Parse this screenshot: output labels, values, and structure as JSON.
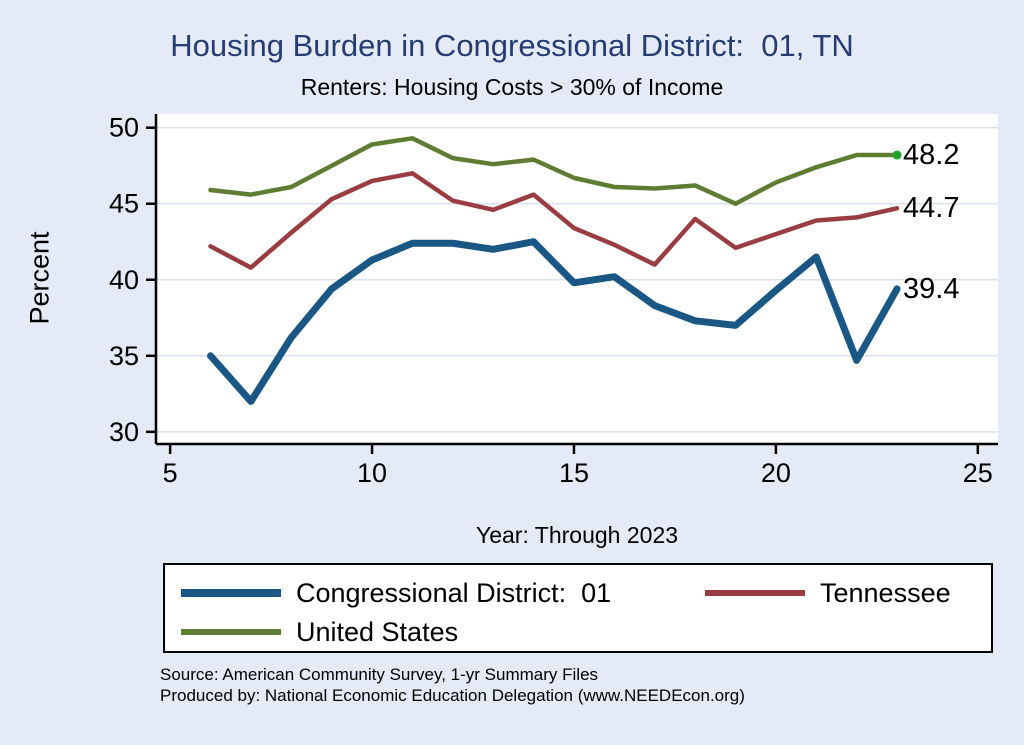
{
  "title": "Housing Burden in Congressional District:  01, TN",
  "subtitle": "Renters: Housing Costs > 30% of Income",
  "source": {
    "line1": "Source: American Community Survey, 1-yr Summary Files",
    "line2": "Produced by: National Economic Education Delegation (www.NEEDEcon.org)"
  },
  "legend": {
    "items": [
      {
        "label": "Congressional District:  01",
        "color": "#1a5785",
        "swatch_height": 8
      },
      {
        "label": "Tennessee",
        "color": "#9a3d42",
        "swatch_height": 6
      },
      {
        "label": "United States",
        "color": "#5e7d33",
        "swatch_height": 6
      }
    ]
  },
  "chart_data": {
    "type": "line",
    "title": "Housing Burden in Congressional District:  01, TN",
    "subtitle": "Renters: Housing Costs > 30% of Income",
    "xlabel": "Year: Through 2023",
    "ylabel": "Percent",
    "x": [
      6,
      7,
      8,
      9,
      10,
      11,
      12,
      13,
      14,
      15,
      16,
      17,
      18,
      19,
      20,
      21,
      22,
      23
    ],
    "series": [
      {
        "name": "Congressional District:  01",
        "color": "#1a5785",
        "width": 7,
        "end_label": "39.4",
        "values": [
          35.0,
          32.0,
          36.2,
          39.4,
          41.3,
          42.4,
          42.4,
          42.0,
          42.5,
          39.8,
          40.2,
          38.3,
          37.3,
          37.0,
          39.3,
          41.5,
          34.7,
          39.4
        ]
      },
      {
        "name": "Tennessee",
        "color": "#9a3d42",
        "width": 4.5,
        "end_label": "44.7",
        "values": [
          42.2,
          40.8,
          43.1,
          45.3,
          46.5,
          47.0,
          45.2,
          44.6,
          45.6,
          43.4,
          42.3,
          41.0,
          44.0,
          42.1,
          43.0,
          43.9,
          44.1,
          44.7
        ]
      },
      {
        "name": "United States",
        "color": "#5e7d33",
        "width": 4.5,
        "end_label": "48.2",
        "end_marker": true,
        "marker_color": "#1fa32a",
        "values": [
          45.9,
          45.6,
          46.1,
          47.5,
          48.9,
          49.3,
          48.0,
          47.6,
          47.9,
          46.7,
          46.1,
          46.0,
          46.2,
          45.0,
          46.4,
          47.4,
          48.2,
          48.2
        ]
      }
    ],
    "xticks": [
      5,
      10,
      15,
      20,
      25
    ],
    "yticks": [
      30,
      35,
      40,
      45,
      50
    ],
    "xlim": [
      4.65,
      25.5
    ],
    "ylim": [
      29.2,
      50.9
    ],
    "grid": "horizontal",
    "grid_color": "#d8e2ef",
    "axis_color": "#000000",
    "plot_bg": "#ffffff",
    "legend_position": "bottom"
  }
}
